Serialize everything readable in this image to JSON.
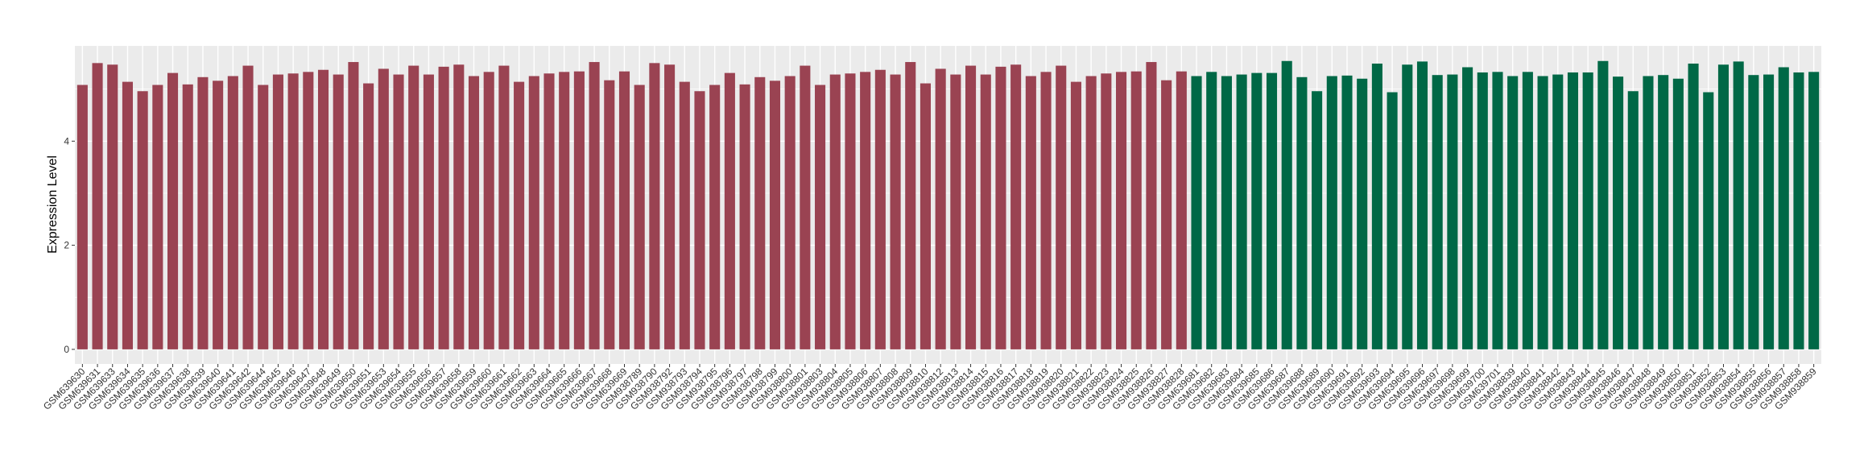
{
  "chart_data": {
    "type": "bar",
    "title": "",
    "xlabel": "",
    "ylabel": "Expression Level",
    "ylim": [
      -0.28,
      5.83
    ],
    "yticks": [
      0,
      2,
      4
    ],
    "grid": true,
    "legend": "none",
    "colors": {
      "group1": "#9A4352",
      "group2": "#006846",
      "panel": "#EBEBEB",
      "grid": "#FFFFFF"
    },
    "categories": [
      "GSM639630",
      "GSM639631",
      "GSM639633",
      "GSM639634",
      "GSM639635",
      "GSM639636",
      "GSM639637",
      "GSM639638",
      "GSM639639",
      "GSM639640",
      "GSM639641",
      "GSM639642",
      "GSM639644",
      "GSM639645",
      "GSM639646",
      "GSM639647",
      "GSM639648",
      "GSM639649",
      "GSM639650",
      "GSM639651",
      "GSM639653",
      "GSM639654",
      "GSM639655",
      "GSM639656",
      "GSM639657",
      "GSM639658",
      "GSM639659",
      "GSM639660",
      "GSM639661",
      "GSM639662",
      "GSM639663",
      "GSM639664",
      "GSM639665",
      "GSM639666",
      "GSM639667",
      "GSM639668",
      "GSM639669",
      "GSM938789",
      "GSM938790",
      "GSM938792",
      "GSM938793",
      "GSM938794",
      "GSM938795",
      "GSM938796",
      "GSM938797",
      "GSM938798",
      "GSM938799",
      "GSM938800",
      "GSM938801",
      "GSM938803",
      "GSM938804",
      "GSM938805",
      "GSM938806",
      "GSM938807",
      "GSM938808",
      "GSM938809",
      "GSM938810",
      "GSM938812",
      "GSM938813",
      "GSM938814",
      "GSM938815",
      "GSM938816",
      "GSM938817",
      "GSM938818",
      "GSM938819",
      "GSM938820",
      "GSM938821",
      "GSM938822",
      "GSM938823",
      "GSM938824",
      "GSM938825",
      "GSM938826",
      "GSM938827",
      "GSM938828",
      "GSM639681",
      "GSM639682",
      "GSM639683",
      "GSM639684",
      "GSM639685",
      "GSM639686",
      "GSM639687",
      "GSM639688",
      "GSM639689",
      "GSM639690",
      "GSM639691",
      "GSM639692",
      "GSM639693",
      "GSM639694",
      "GSM639695",
      "GSM639696",
      "GSM639697",
      "GSM639698",
      "GSM639699",
      "GSM639700",
      "GSM639701",
      "GSM938839",
      "GSM938840",
      "GSM938841",
      "GSM938842",
      "GSM938843",
      "GSM938844",
      "GSM938845",
      "GSM938846",
      "GSM938847",
      "GSM938848",
      "GSM938849",
      "GSM938850",
      "GSM938851",
      "GSM938852",
      "GSM938853",
      "GSM938854",
      "GSM938855",
      "GSM938856",
      "GSM938857",
      "GSM938858",
      "GSM938859"
    ],
    "values": [
      5.08,
      5.5,
      5.47,
      5.14,
      4.96,
      5.08,
      5.31,
      5.09,
      5.23,
      5.16,
      5.25,
      5.45,
      5.08,
      5.28,
      5.3,
      5.33,
      5.37,
      5.28,
      5.52,
      5.11,
      5.39,
      5.28,
      5.45,
      5.28,
      5.43,
      5.47,
      5.25,
      5.33,
      5.45,
      5.14,
      5.25,
      5.3,
      5.33,
      5.34,
      5.52,
      5.17,
      5.34,
      5.08,
      5.5,
      5.47,
      5.14,
      4.96,
      5.08,
      5.31,
      5.09,
      5.23,
      5.16,
      5.25,
      5.45,
      5.08,
      5.28,
      5.3,
      5.33,
      5.37,
      5.28,
      5.52,
      5.11,
      5.39,
      5.28,
      5.45,
      5.28,
      5.43,
      5.47,
      5.25,
      5.33,
      5.45,
      5.14,
      5.25,
      5.3,
      5.33,
      5.34,
      5.52,
      5.17,
      5.34,
      5.25,
      5.33,
      5.25,
      5.28,
      5.31,
      5.31,
      5.54,
      5.23,
      4.96,
      5.25,
      5.26,
      5.2,
      5.49,
      4.94,
      5.47,
      5.53,
      5.27,
      5.28,
      5.42,
      5.32,
      5.33,
      5.25,
      5.33,
      5.25,
      5.28,
      5.32,
      5.32,
      5.54,
      5.24,
      4.96,
      5.25,
      5.27,
      5.2,
      5.49,
      4.94,
      5.47,
      5.53,
      5.27,
      5.28,
      5.42,
      5.32,
      5.33
    ],
    "groups": [
      1,
      1,
      1,
      1,
      1,
      1,
      1,
      1,
      1,
      1,
      1,
      1,
      1,
      1,
      1,
      1,
      1,
      1,
      1,
      1,
      1,
      1,
      1,
      1,
      1,
      1,
      1,
      1,
      1,
      1,
      1,
      1,
      1,
      1,
      1,
      1,
      1,
      1,
      1,
      1,
      1,
      1,
      1,
      1,
      1,
      1,
      1,
      1,
      1,
      1,
      1,
      1,
      1,
      1,
      1,
      1,
      1,
      1,
      1,
      1,
      1,
      1,
      1,
      1,
      1,
      1,
      1,
      1,
      1,
      1,
      1,
      1,
      1,
      1,
      2,
      2,
      2,
      2,
      2,
      2,
      2,
      2,
      2,
      2,
      2,
      2,
      2,
      2,
      2,
      2,
      2,
      2,
      2,
      2,
      2,
      2,
      2,
      2,
      2,
      2,
      2,
      2,
      2,
      2,
      2,
      2,
      2,
      2,
      2,
      2,
      2,
      2,
      2,
      2,
      2,
      2
    ]
  }
}
